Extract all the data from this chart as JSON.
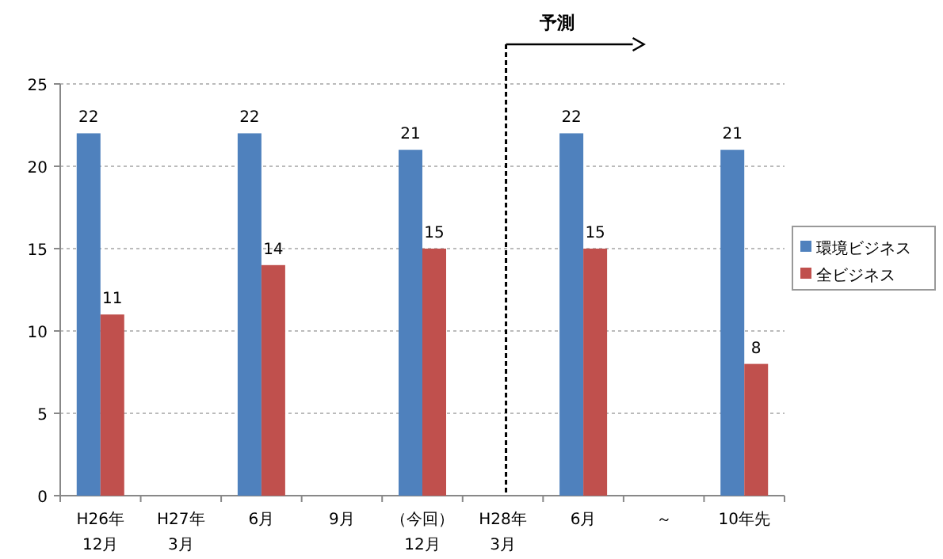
{
  "chart_data": {
    "type": "bar",
    "categories": [
      "H26年\n12月",
      "H27年\n3月",
      "6月",
      "9月",
      "（今回）\n12月",
      "H28年\n3月",
      "6月",
      "～",
      "10年先"
    ],
    "series": [
      {
        "name": "環境ビジネス",
        "color": "#4f81bd",
        "values": [
          22,
          null,
          22,
          null,
          21,
          null,
          22,
          null,
          21
        ]
      },
      {
        "name": "全ビジネス",
        "color": "#c0504d",
        "values": [
          11,
          null,
          14,
          null,
          15,
          null,
          15,
          null,
          8
        ]
      }
    ],
    "ylim": [
      0,
      25
    ],
    "yticks": [
      0,
      5,
      10,
      15,
      20,
      25
    ],
    "grid": "y",
    "legend": "right",
    "data_labels": true,
    "ref_lines": [
      {
        "axis": "x",
        "value": "H28年\n3月",
        "label": "予測",
        "line_style": "dashed",
        "color": "#000000"
      }
    ]
  }
}
